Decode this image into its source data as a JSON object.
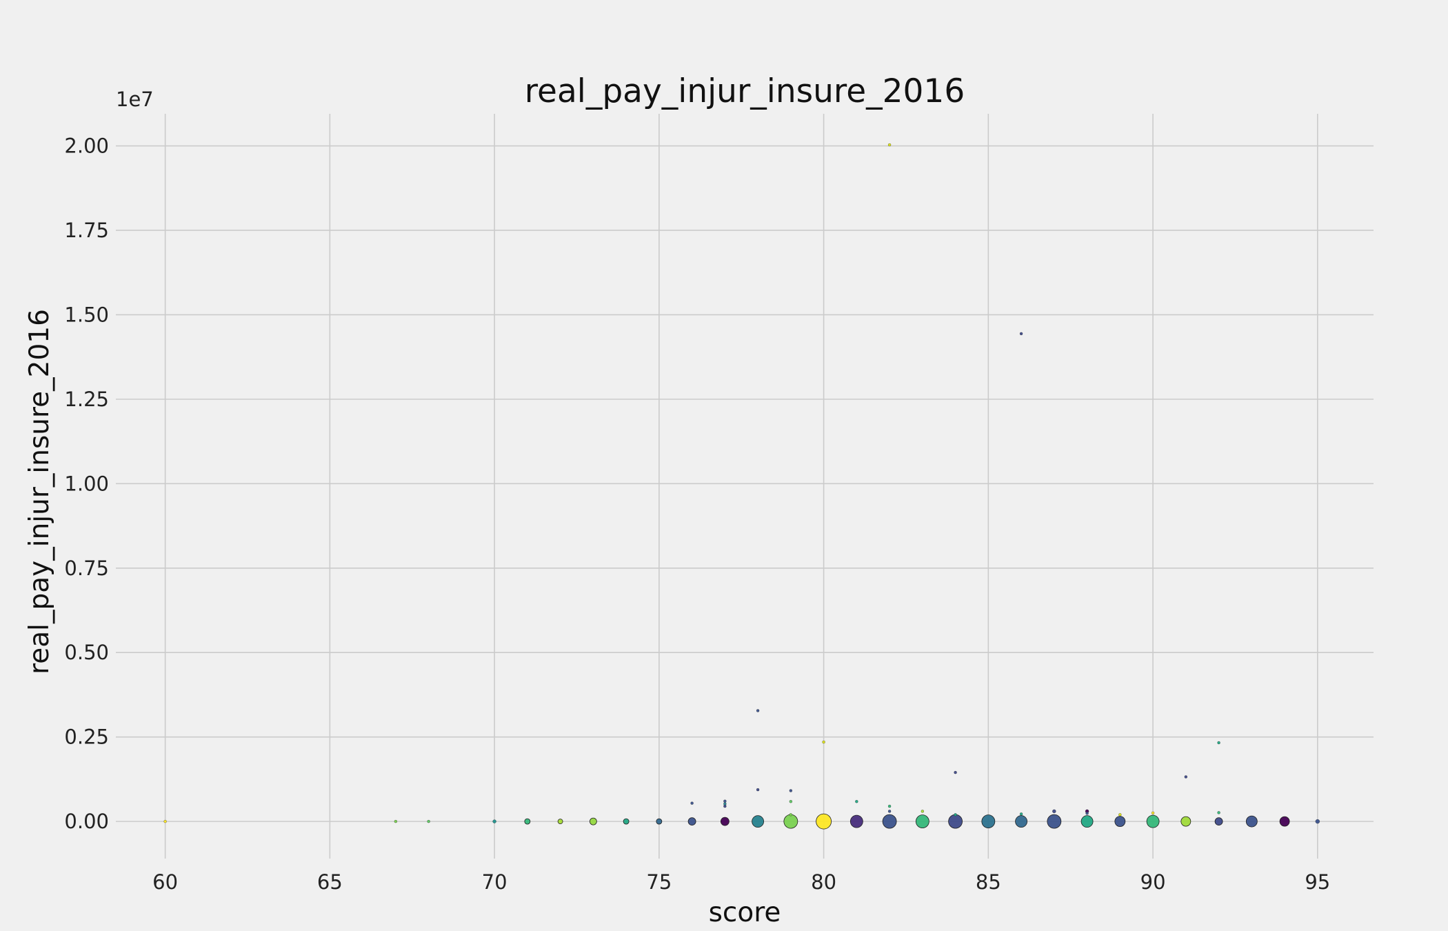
{
  "chart_data": {
    "type": "scatter",
    "title": "real_pay_injur_insure_2016",
    "xlabel": "score",
    "ylabel": "real_pay_injur_insure_2016",
    "y_offset_label": "1e7",
    "xlim": [
      58.5,
      96.7
    ],
    "ylim": [
      -1100000,
      20950000
    ],
    "xticks": [
      60,
      65,
      70,
      75,
      80,
      85,
      90,
      95
    ],
    "xtick_labels": [
      "60",
      "65",
      "70",
      "75",
      "80",
      "85",
      "90",
      "95"
    ],
    "yticks": [
      0,
      2500000,
      5000000,
      7500000,
      10000000,
      12500000,
      15000000,
      17500000,
      20000000
    ],
    "ytick_labels": [
      "0.00",
      "0.25",
      "0.50",
      "0.75",
      "1.00",
      "1.25",
      "1.50",
      "1.75",
      "2.00"
    ],
    "grid": true,
    "colormap": "viridis",
    "background": "#f0f0f0",
    "points": [
      {
        "x": 60,
        "y": 0,
        "size": 2,
        "color": "#fde725"
      },
      {
        "x": 67,
        "y": 0,
        "size": 2,
        "color": "#7ad151"
      },
      {
        "x": 68,
        "y": 0,
        "size": 2,
        "color": "#5ec962"
      },
      {
        "x": 70,
        "y": 0,
        "size": 2.5,
        "color": "#21918c"
      },
      {
        "x": 71,
        "y": 0,
        "size": 4,
        "color": "#35b779"
      },
      {
        "x": 72,
        "y": 0,
        "size": 3.5,
        "color": "#a5db36"
      },
      {
        "x": 73,
        "y": 0,
        "size": 5,
        "color": "#95d840"
      },
      {
        "x": 74,
        "y": 0,
        "size": 4,
        "color": "#22a884"
      },
      {
        "x": 75,
        "y": 0,
        "size": 4,
        "color": "#31688e"
      },
      {
        "x": 76,
        "y": 0,
        "size": 5.5,
        "color": "#3b528b"
      },
      {
        "x": 77,
        "y": 0,
        "size": 6,
        "color": "#440154"
      },
      {
        "x": 78,
        "y": 0,
        "size": 8.5,
        "color": "#26828e"
      },
      {
        "x": 79,
        "y": 0,
        "size": 10,
        "color": "#7ad151"
      },
      {
        "x": 80,
        "y": 0,
        "size": 11,
        "color": "#fde725"
      },
      {
        "x": 81,
        "y": 0,
        "size": 9,
        "color": "#472d7b"
      },
      {
        "x": 82,
        "y": 0,
        "size": 10,
        "color": "#3b528b"
      },
      {
        "x": 83,
        "y": 0,
        "size": 9.5,
        "color": "#35b779"
      },
      {
        "x": 84,
        "y": 0,
        "size": 10,
        "color": "#3e4a89"
      },
      {
        "x": 85,
        "y": 0,
        "size": 9.5,
        "color": "#2c728e"
      },
      {
        "x": 86,
        "y": 0,
        "size": 8.5,
        "color": "#31688e"
      },
      {
        "x": 87,
        "y": 0,
        "size": 10,
        "color": "#3b528b"
      },
      {
        "x": 88,
        "y": 0,
        "size": 8.5,
        "color": "#22a884"
      },
      {
        "x": 89,
        "y": 0,
        "size": 7.5,
        "color": "#3b528b"
      },
      {
        "x": 90,
        "y": 0,
        "size": 9,
        "color": "#35b779"
      },
      {
        "x": 91,
        "y": 0,
        "size": 7,
        "color": "#a0da39"
      },
      {
        "x": 92,
        "y": 0,
        "size": 5.5,
        "color": "#3e4a89"
      },
      {
        "x": 93,
        "y": 0,
        "size": 8,
        "color": "#3b528b"
      },
      {
        "x": 94,
        "y": 0,
        "size": 7,
        "color": "#440154"
      },
      {
        "x": 95,
        "y": 0,
        "size": 3,
        "color": "#3b528b"
      },
      {
        "x": 76,
        "y": 540000,
        "size": 2,
        "color": "#3b528b"
      },
      {
        "x": 77,
        "y": 600000,
        "size": 2,
        "color": "#3b528b"
      },
      {
        "x": 77,
        "y": 520000,
        "size": 2,
        "color": "#26828e"
      },
      {
        "x": 77,
        "y": 450000,
        "size": 2,
        "color": "#3e4a89"
      },
      {
        "x": 78,
        "y": 3280000,
        "size": 2,
        "color": "#3b528b"
      },
      {
        "x": 78,
        "y": 940000,
        "size": 2,
        "color": "#3e4a89"
      },
      {
        "x": 79,
        "y": 910000,
        "size": 2,
        "color": "#3b528b"
      },
      {
        "x": 79,
        "y": 590000,
        "size": 2,
        "color": "#5ec962"
      },
      {
        "x": 79,
        "y": 200000,
        "size": 2,
        "color": "#7ad151"
      },
      {
        "x": 80,
        "y": 2350000,
        "size": 2,
        "color": "#dde318"
      },
      {
        "x": 81,
        "y": 590000,
        "size": 2,
        "color": "#22a884"
      },
      {
        "x": 82,
        "y": 20030000,
        "size": 2,
        "color": "#dde318"
      },
      {
        "x": 82,
        "y": 450000,
        "size": 2,
        "color": "#35b779"
      },
      {
        "x": 82,
        "y": 300000,
        "size": 2,
        "color": "#3b528b"
      },
      {
        "x": 83,
        "y": 300000,
        "size": 2,
        "color": "#a5db36"
      },
      {
        "x": 84,
        "y": 1450000,
        "size": 2,
        "color": "#3e4a89"
      },
      {
        "x": 84,
        "y": 200000,
        "size": 2,
        "color": "#22a884"
      },
      {
        "x": 86,
        "y": 14440000,
        "size": 2,
        "color": "#3e4a89"
      },
      {
        "x": 86,
        "y": 220000,
        "size": 2,
        "color": "#22a884"
      },
      {
        "x": 87,
        "y": 300000,
        "size": 2.5,
        "color": "#3e4a89"
      },
      {
        "x": 88,
        "y": 300000,
        "size": 2.5,
        "color": "#440154"
      },
      {
        "x": 88,
        "y": 240000,
        "size": 2,
        "color": "#3b528b"
      },
      {
        "x": 89,
        "y": 200000,
        "size": 2,
        "color": "#dde318"
      },
      {
        "x": 90,
        "y": 250000,
        "size": 2,
        "color": "#fde725"
      },
      {
        "x": 91,
        "y": 1320000,
        "size": 2,
        "color": "#3e4a89"
      },
      {
        "x": 92,
        "y": 2330000,
        "size": 2,
        "color": "#22a884"
      },
      {
        "x": 92,
        "y": 260000,
        "size": 2,
        "color": "#35b779"
      }
    ]
  }
}
